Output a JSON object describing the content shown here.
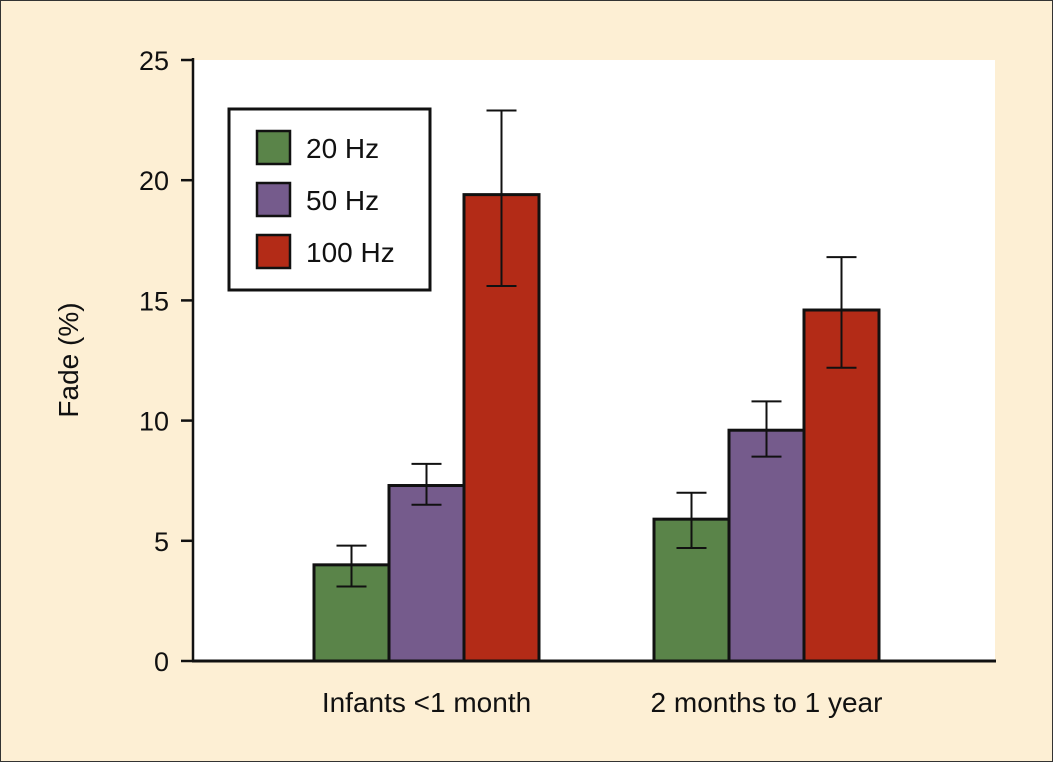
{
  "chart_data": {
    "type": "bar",
    "title": "",
    "xlabel": "",
    "ylabel": "Fade (%)",
    "ylim": [
      0,
      25
    ],
    "yticks": [
      0,
      5,
      10,
      15,
      20,
      25
    ],
    "categories": [
      "Infants <1 month",
      "2 months to 1 year"
    ],
    "grid": false,
    "legend_position": "top-left",
    "series": [
      {
        "name": "20 Hz",
        "color": "#5a8449",
        "values": [
          4.0,
          5.9
        ],
        "error_low": [
          3.1,
          4.7
        ],
        "error_high": [
          4.8,
          7.0
        ]
      },
      {
        "name": "50 Hz",
        "color": "#755b8c",
        "values": [
          7.3,
          9.6
        ],
        "error_low": [
          6.5,
          8.5
        ],
        "error_high": [
          8.2,
          10.8
        ]
      },
      {
        "name": "100 Hz",
        "color": "#b32b17",
        "values": [
          19.4,
          14.6
        ],
        "error_low": [
          15.6,
          12.2
        ],
        "error_high": [
          22.9,
          16.8
        ]
      }
    ]
  }
}
